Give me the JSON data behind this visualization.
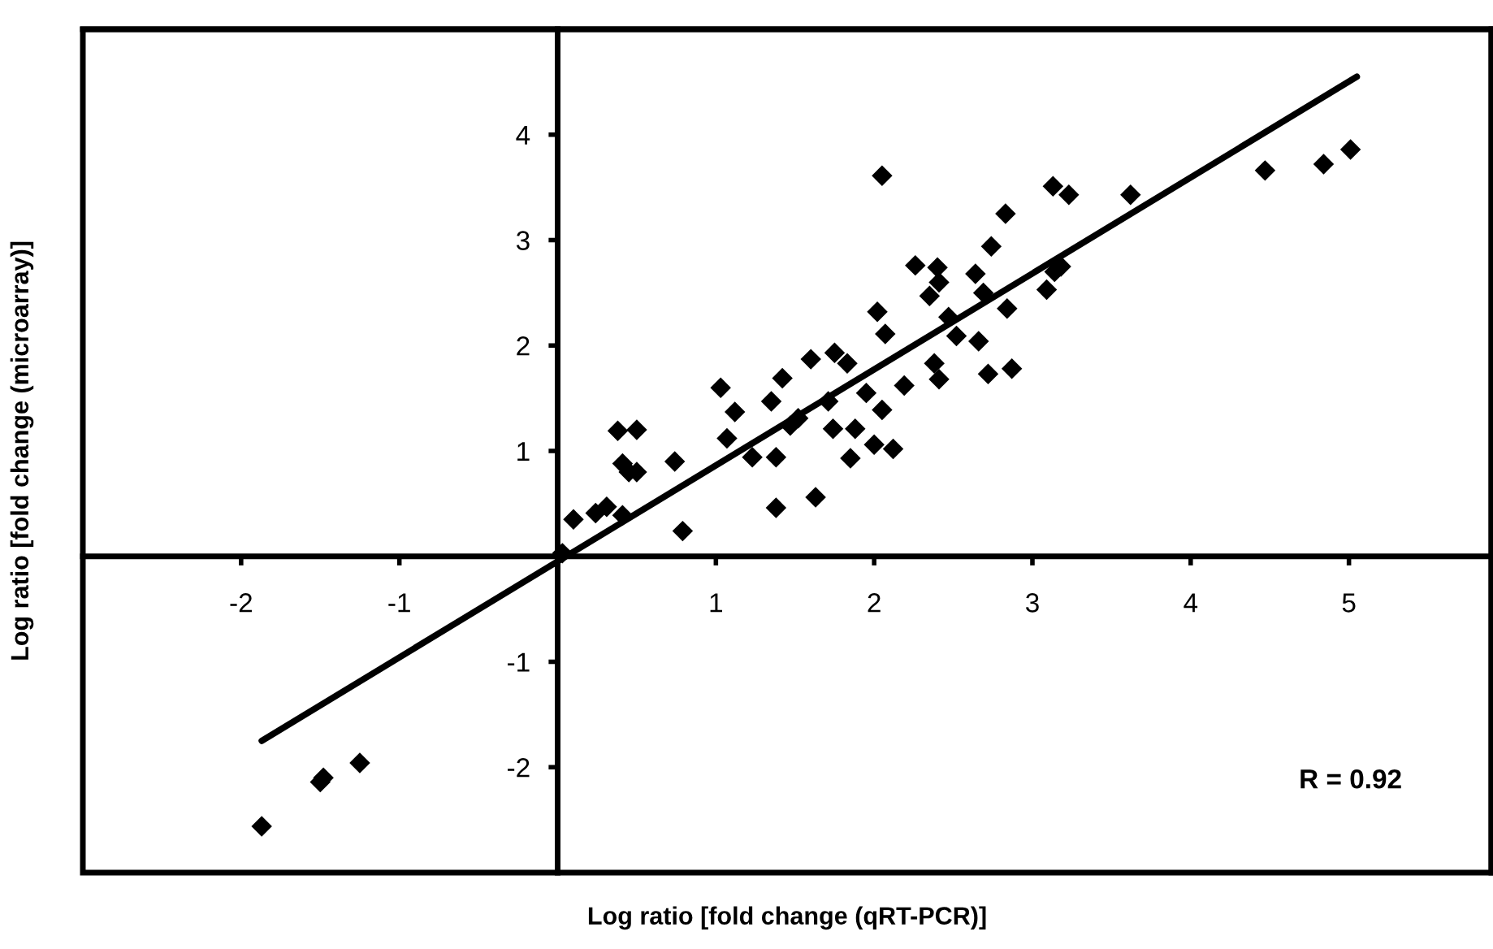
{
  "chart_data": {
    "type": "scatter",
    "xlabel": "Log ratio [fold change (qRT-PCR)]",
    "ylabel": "Log ratio [fold change (microarray)]",
    "xlim": [
      -3,
      5.9
    ],
    "ylim": [
      -3,
      5
    ],
    "xticks": [
      {
        "value": -3,
        "label": null
      },
      -2,
      -1,
      {
        "value": 0,
        "label": null
      },
      1,
      2,
      3,
      4,
      5
    ],
    "yticks": [
      {
        "value": -3,
        "label": null
      },
      -2,
      -1,
      {
        "value": 0,
        "label": null
      },
      1,
      2,
      3,
      4,
      {
        "value": 5,
        "label": null
      }
    ],
    "grid": false,
    "marker": "diamond",
    "annotations": [
      "R = 0.92"
    ],
    "series": [
      {
        "color": "#000000",
        "x": [
          -1.87,
          -1.5,
          -1.48,
          -1.25,
          0.03,
          0.1,
          0.24,
          0.31,
          0.41,
          0.38,
          0.5,
          0.41,
          0.45,
          0.5,
          0.74,
          0.79,
          1.03,
          1.12,
          1.07,
          1.23,
          1.38,
          1.38,
          1.42,
          1.35,
          1.47,
          1.52,
          1.6,
          1.63,
          1.71,
          1.74,
          1.88,
          1.85,
          1.75,
          1.83,
          1.95,
          2.05,
          2.0,
          2.12,
          2.05,
          2.02,
          2.07,
          2.19,
          2.26,
          2.4,
          2.41,
          2.35,
          2.47,
          2.52,
          2.38,
          2.41,
          2.64,
          2.66,
          2.74,
          2.83,
          2.84,
          2.72,
          2.87,
          2.69,
          3.14,
          3.09,
          3.18,
          3.13,
          3.23,
          3.62,
          4.47,
          4.84,
          5.01
        ],
        "values": [
          -2.56,
          -2.14,
          -2.1,
          -1.96,
          0.03,
          0.35,
          0.41,
          0.47,
          0.39,
          1.19,
          1.2,
          0.88,
          0.8,
          0.8,
          0.9,
          0.24,
          1.6,
          1.37,
          1.12,
          0.94,
          0.94,
          0.46,
          1.69,
          1.47,
          1.24,
          1.31,
          1.87,
          0.56,
          1.47,
          1.21,
          1.21,
          0.93,
          1.93,
          1.83,
          1.55,
          1.39,
          1.06,
          1.02,
          3.61,
          2.32,
          2.11,
          1.62,
          2.76,
          2.74,
          2.6,
          2.47,
          2.27,
          2.09,
          1.83,
          1.68,
          2.68,
          2.04,
          2.94,
          3.25,
          2.35,
          1.73,
          1.78,
          2.5,
          2.7,
          2.53,
          2.75,
          3.51,
          3.43,
          3.43,
          3.66,
          3.72,
          3.86
        ]
      },
      {
        "type": "line",
        "color": "#000000",
        "x": [
          -1.87,
          5.05
        ],
        "values": [
          -1.75,
          4.55
        ],
        "marker": "none",
        "line_style": "solid"
      }
    ]
  }
}
